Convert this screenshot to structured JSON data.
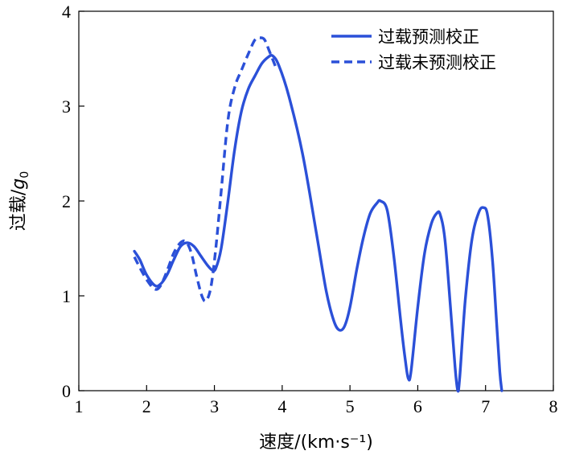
{
  "chart_data": {
    "type": "line",
    "xlabel": "速度/(km·s⁻¹)",
    "ylabel_main": "过载/",
    "ylabel_italic": "g",
    "ylabel_sub": "0",
    "xlim": [
      1,
      8
    ],
    "ylim": [
      0,
      4
    ],
    "xticks": [
      "1",
      "2",
      "3",
      "4",
      "5",
      "6",
      "7",
      "8"
    ],
    "yticks": [
      "0",
      "1",
      "2",
      "3",
      "4"
    ],
    "grid": false,
    "legend_position": "top-right",
    "color": "#2b50d8",
    "series": [
      {
        "name": "过载预测校正",
        "style": "solid",
        "points": [
          [
            1.82,
            1.47
          ],
          [
            1.9,
            1.38
          ],
          [
            2.0,
            1.22
          ],
          [
            2.12,
            1.11
          ],
          [
            2.2,
            1.12
          ],
          [
            2.3,
            1.22
          ],
          [
            2.4,
            1.38
          ],
          [
            2.5,
            1.52
          ],
          [
            2.6,
            1.56
          ],
          [
            2.7,
            1.52
          ],
          [
            2.8,
            1.42
          ],
          [
            2.9,
            1.32
          ],
          [
            2.97,
            1.27
          ],
          [
            3.02,
            1.29
          ],
          [
            3.1,
            1.5
          ],
          [
            3.2,
            2.0
          ],
          [
            3.3,
            2.55
          ],
          [
            3.4,
            2.95
          ],
          [
            3.5,
            3.18
          ],
          [
            3.6,
            3.32
          ],
          [
            3.7,
            3.45
          ],
          [
            3.8,
            3.52
          ],
          [
            3.86,
            3.53
          ],
          [
            3.95,
            3.43
          ],
          [
            4.1,
            3.1
          ],
          [
            4.3,
            2.5
          ],
          [
            4.5,
            1.68
          ],
          [
            4.65,
            1.05
          ],
          [
            4.76,
            0.74
          ],
          [
            4.84,
            0.64
          ],
          [
            4.92,
            0.68
          ],
          [
            5.0,
            0.88
          ],
          [
            5.1,
            1.28
          ],
          [
            5.2,
            1.62
          ],
          [
            5.3,
            1.87
          ],
          [
            5.4,
            1.98
          ],
          [
            5.45,
            2.0
          ],
          [
            5.55,
            1.9
          ],
          [
            5.65,
            1.4
          ],
          [
            5.75,
            0.72
          ],
          [
            5.82,
            0.3
          ],
          [
            5.86,
            0.13
          ],
          [
            5.9,
            0.2
          ],
          [
            6.0,
            0.88
          ],
          [
            6.1,
            1.45
          ],
          [
            6.2,
            1.76
          ],
          [
            6.28,
            1.87
          ],
          [
            6.33,
            1.86
          ],
          [
            6.4,
            1.6
          ],
          [
            6.48,
            0.9
          ],
          [
            6.55,
            0.25
          ],
          [
            6.59,
            0.0
          ],
          [
            6.62,
            0.15
          ],
          [
            6.7,
            0.95
          ],
          [
            6.8,
            1.6
          ],
          [
            6.9,
            1.88
          ],
          [
            6.97,
            1.93
          ],
          [
            7.03,
            1.85
          ],
          [
            7.1,
            1.4
          ],
          [
            7.16,
            0.75
          ],
          [
            7.21,
            0.2
          ],
          [
            7.24,
            0.0
          ]
        ]
      },
      {
        "name": "过载未预测校正",
        "style": "dashed",
        "points": [
          [
            1.82,
            1.41
          ],
          [
            1.92,
            1.27
          ],
          [
            2.02,
            1.15
          ],
          [
            2.12,
            1.07
          ],
          [
            2.2,
            1.1
          ],
          [
            2.3,
            1.26
          ],
          [
            2.4,
            1.45
          ],
          [
            2.5,
            1.56
          ],
          [
            2.58,
            1.57
          ],
          [
            2.66,
            1.45
          ],
          [
            2.74,
            1.2
          ],
          [
            2.82,
            0.99
          ],
          [
            2.88,
            0.95
          ],
          [
            2.95,
            1.1
          ],
          [
            3.02,
            1.5
          ],
          [
            3.1,
            2.1
          ],
          [
            3.2,
            2.85
          ],
          [
            3.3,
            3.2
          ],
          [
            3.4,
            3.38
          ],
          [
            3.5,
            3.55
          ],
          [
            3.6,
            3.7
          ],
          [
            3.68,
            3.72
          ],
          [
            3.74,
            3.7
          ],
          [
            3.8,
            3.6
          ],
          [
            3.9,
            3.42
          ]
        ]
      }
    ]
  }
}
